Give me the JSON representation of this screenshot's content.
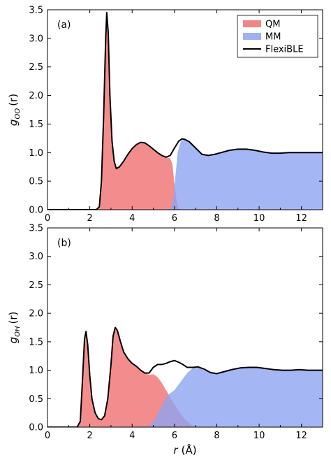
{
  "chart_data": [
    {
      "type": "area",
      "panel_label": "(a)",
      "ylabel_main": "g",
      "ylabel_sub": "OO",
      "ylabel_suffix": "(r)",
      "xlim": [
        0,
        13
      ],
      "ylim": [
        0,
        3.5
      ],
      "xticks": [
        0,
        2,
        4,
        6,
        8,
        10,
        12
      ],
      "yticks": [
        "0.0",
        "0.5",
        "1.0",
        "1.5",
        "2.0",
        "2.5",
        "3.0",
        "3.5"
      ],
      "legend": {
        "placement": "top-right",
        "entries": [
          "QM",
          "MM",
          "FlexiBLE"
        ]
      },
      "series": [
        {
          "name": "QM",
          "color": "#f07070",
          "points": [
            [
              0,
              0
            ],
            [
              2.3,
              0
            ],
            [
              2.45,
              0.05
            ],
            [
              2.55,
              0.5
            ],
            [
              2.65,
              1.6
            ],
            [
              2.75,
              3.0
            ],
            [
              2.8,
              3.45
            ],
            [
              2.87,
              3.1
            ],
            [
              2.95,
              2.0
            ],
            [
              3.05,
              1.2
            ],
            [
              3.15,
              0.85
            ],
            [
              3.25,
              0.72
            ],
            [
              3.4,
              0.75
            ],
            [
              3.6,
              0.85
            ],
            [
              3.8,
              0.97
            ],
            [
              4.0,
              1.07
            ],
            [
              4.2,
              1.14
            ],
            [
              4.4,
              1.18
            ],
            [
              4.6,
              1.17
            ],
            [
              4.8,
              1.12
            ],
            [
              5.0,
              1.06
            ],
            [
              5.2,
              1.0
            ],
            [
              5.4,
              0.95
            ],
            [
              5.6,
              0.92
            ],
            [
              5.8,
              0.9
            ],
            [
              5.9,
              0.8
            ],
            [
              6.0,
              0.45
            ],
            [
              6.1,
              0.15
            ],
            [
              6.2,
              0.02
            ],
            [
              6.3,
              0
            ]
          ]
        },
        {
          "name": "MM",
          "color": "#8da4f0",
          "points": [
            [
              5.7,
              0
            ],
            [
              5.85,
              0.05
            ],
            [
              5.95,
              0.2
            ],
            [
              6.05,
              0.6
            ],
            [
              6.15,
              1.0
            ],
            [
              6.3,
              1.2
            ],
            [
              6.5,
              1.24
            ],
            [
              6.7,
              1.2
            ],
            [
              7.0,
              1.08
            ],
            [
              7.3,
              0.97
            ],
            [
              7.6,
              0.95
            ],
            [
              7.9,
              0.97
            ],
            [
              8.2,
              1.0
            ],
            [
              8.6,
              1.04
            ],
            [
              9.0,
              1.06
            ],
            [
              9.4,
              1.06
            ],
            [
              9.8,
              1.04
            ],
            [
              10.2,
              1.01
            ],
            [
              10.6,
              0.99
            ],
            [
              11.0,
              0.99
            ],
            [
              11.4,
              1.0
            ],
            [
              11.8,
              1.0
            ],
            [
              12.2,
              1.0
            ],
            [
              12.6,
              1.0
            ],
            [
              13.0,
              1.0
            ]
          ]
        },
        {
          "name": "FlexiBLE",
          "color": "#000000",
          "points": [
            [
              0,
              0
            ],
            [
              2.3,
              0
            ],
            [
              2.45,
              0.05
            ],
            [
              2.55,
              0.5
            ],
            [
              2.65,
              1.6
            ],
            [
              2.75,
              3.0
            ],
            [
              2.8,
              3.45
            ],
            [
              2.87,
              3.1
            ],
            [
              2.95,
              2.0
            ],
            [
              3.05,
              1.2
            ],
            [
              3.15,
              0.85
            ],
            [
              3.25,
              0.72
            ],
            [
              3.4,
              0.75
            ],
            [
              3.6,
              0.85
            ],
            [
              3.8,
              0.97
            ],
            [
              4.0,
              1.07
            ],
            [
              4.2,
              1.14
            ],
            [
              4.4,
              1.18
            ],
            [
              4.6,
              1.17
            ],
            [
              4.8,
              1.12
            ],
            [
              5.0,
              1.06
            ],
            [
              5.2,
              1.0
            ],
            [
              5.4,
              0.95
            ],
            [
              5.6,
              0.92
            ],
            [
              5.8,
              0.95
            ],
            [
              6.0,
              1.08
            ],
            [
              6.2,
              1.2
            ],
            [
              6.35,
              1.24
            ],
            [
              6.5,
              1.23
            ],
            [
              6.7,
              1.19
            ],
            [
              7.0,
              1.08
            ],
            [
              7.3,
              0.97
            ],
            [
              7.6,
              0.95
            ],
            [
              7.9,
              0.97
            ],
            [
              8.2,
              1.0
            ],
            [
              8.6,
              1.04
            ],
            [
              9.0,
              1.06
            ],
            [
              9.4,
              1.06
            ],
            [
              9.8,
              1.04
            ],
            [
              10.2,
              1.01
            ],
            [
              10.6,
              0.99
            ],
            [
              11.0,
              0.99
            ],
            [
              11.4,
              1.0
            ],
            [
              11.8,
              1.0
            ],
            [
              12.2,
              1.0
            ],
            [
              12.6,
              1.0
            ],
            [
              13.0,
              1.0
            ]
          ]
        }
      ]
    },
    {
      "type": "area",
      "panel_label": "(b)",
      "ylabel_main": "g",
      "ylabel_sub": "OH",
      "ylabel_suffix": "(r)",
      "xlabel_main": "r",
      "xlabel_suffix": "(Å)",
      "xlim": [
        0,
        13
      ],
      "ylim": [
        0,
        3.5
      ],
      "xticks": [
        0,
        2,
        4,
        6,
        8,
        10,
        12
      ],
      "yticks": [
        "0.0",
        "0.5",
        "1.0",
        "1.5",
        "2.0",
        "2.5",
        "3.0",
        "3.5"
      ],
      "series": [
        {
          "name": "QM",
          "color": "#f07070",
          "points": [
            [
              0,
              0
            ],
            [
              1.4,
              0
            ],
            [
              1.55,
              0.1
            ],
            [
              1.65,
              0.8
            ],
            [
              1.75,
              1.55
            ],
            [
              1.82,
              1.68
            ],
            [
              1.9,
              1.45
            ],
            [
              2.0,
              0.9
            ],
            [
              2.1,
              0.5
            ],
            [
              2.25,
              0.25
            ],
            [
              2.4,
              0.15
            ],
            [
              2.55,
              0.13
            ],
            [
              2.7,
              0.2
            ],
            [
              2.85,
              0.5
            ],
            [
              3.0,
              1.1
            ],
            [
              3.1,
              1.6
            ],
            [
              3.2,
              1.75
            ],
            [
              3.3,
              1.7
            ],
            [
              3.45,
              1.5
            ],
            [
              3.6,
              1.32
            ],
            [
              3.8,
              1.2
            ],
            [
              4.0,
              1.12
            ],
            [
              4.2,
              1.07
            ],
            [
              4.4,
              1.0
            ],
            [
              4.6,
              0.95
            ],
            [
              4.8,
              0.92
            ],
            [
              5.0,
              0.93
            ],
            [
              5.2,
              0.88
            ],
            [
              5.4,
              0.78
            ],
            [
              5.6,
              0.65
            ],
            [
              5.8,
              0.52
            ],
            [
              6.0,
              0.4
            ],
            [
              6.2,
              0.28
            ],
            [
              6.4,
              0.18
            ],
            [
              6.6,
              0.1
            ],
            [
              6.8,
              0.04
            ],
            [
              7.0,
              0
            ]
          ]
        },
        {
          "name": "MM",
          "color": "#8da4f0",
          "points": [
            [
              4.7,
              0
            ],
            [
              4.9,
              0.05
            ],
            [
              5.1,
              0.15
            ],
            [
              5.3,
              0.3
            ],
            [
              5.5,
              0.45
            ],
            [
              5.7,
              0.57
            ],
            [
              6.0,
              0.65
            ],
            [
              6.3,
              0.8
            ],
            [
              6.6,
              0.95
            ],
            [
              6.9,
              1.05
            ],
            [
              7.1,
              1.06
            ],
            [
              7.4,
              1.02
            ],
            [
              7.7,
              0.96
            ],
            [
              8.0,
              0.94
            ],
            [
              8.3,
              0.97
            ],
            [
              8.7,
              1.01
            ],
            [
              9.1,
              1.04
            ],
            [
              9.5,
              1.05
            ],
            [
              9.9,
              1.05
            ],
            [
              10.3,
              1.03
            ],
            [
              10.7,
              1.01
            ],
            [
              11.1,
              1.0
            ],
            [
              11.5,
              1.0
            ],
            [
              11.9,
              1.01
            ],
            [
              12.3,
              1.0
            ],
            [
              12.7,
              1.0
            ],
            [
              13.0,
              1.0
            ]
          ]
        },
        {
          "name": "FlexiBLE",
          "color": "#000000",
          "points": [
            [
              0,
              0
            ],
            [
              1.4,
              0
            ],
            [
              1.55,
              0.1
            ],
            [
              1.65,
              0.8
            ],
            [
              1.75,
              1.55
            ],
            [
              1.82,
              1.68
            ],
            [
              1.9,
              1.45
            ],
            [
              2.0,
              0.9
            ],
            [
              2.1,
              0.5
            ],
            [
              2.25,
              0.25
            ],
            [
              2.4,
              0.15
            ],
            [
              2.55,
              0.13
            ],
            [
              2.7,
              0.2
            ],
            [
              2.85,
              0.5
            ],
            [
              3.0,
              1.1
            ],
            [
              3.1,
              1.6
            ],
            [
              3.2,
              1.75
            ],
            [
              3.3,
              1.7
            ],
            [
              3.45,
              1.5
            ],
            [
              3.6,
              1.32
            ],
            [
              3.8,
              1.2
            ],
            [
              4.0,
              1.12
            ],
            [
              4.2,
              1.07
            ],
            [
              4.4,
              1.0
            ],
            [
              4.6,
              0.95
            ],
            [
              4.8,
              0.95
            ],
            [
              5.0,
              1.05
            ],
            [
              5.2,
              1.1
            ],
            [
              5.4,
              1.1
            ],
            [
              5.6,
              1.12
            ],
            [
              5.8,
              1.15
            ],
            [
              6.0,
              1.17
            ],
            [
              6.2,
              1.14
            ],
            [
              6.4,
              1.1
            ],
            [
              6.6,
              1.05
            ],
            [
              6.9,
              1.05
            ],
            [
              7.1,
              1.06
            ],
            [
              7.4,
              1.02
            ],
            [
              7.7,
              0.96
            ],
            [
              8.0,
              0.94
            ],
            [
              8.3,
              0.97
            ],
            [
              8.7,
              1.01
            ],
            [
              9.1,
              1.04
            ],
            [
              9.5,
              1.05
            ],
            [
              9.9,
              1.05
            ],
            [
              10.3,
              1.03
            ],
            [
              10.7,
              1.01
            ],
            [
              11.1,
              1.0
            ],
            [
              11.5,
              1.0
            ],
            [
              11.9,
              1.01
            ],
            [
              12.3,
              1.0
            ],
            [
              12.7,
              1.0
            ],
            [
              13.0,
              1.0
            ]
          ]
        }
      ]
    }
  ]
}
